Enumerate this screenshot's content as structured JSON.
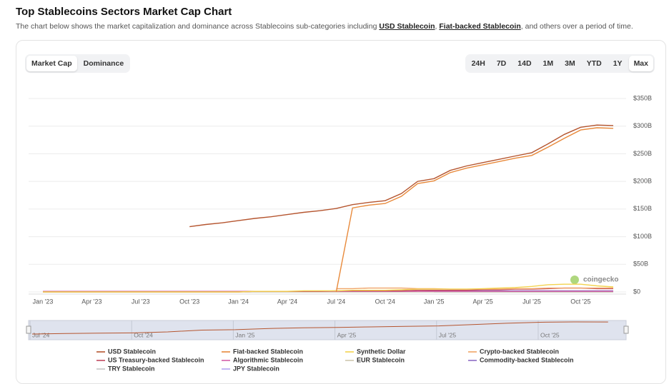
{
  "header": {
    "title": "Top Stablecoins Sectors Market Cap Chart",
    "subtitle": {
      "before": "The chart below shows the market capitalization and dominance across Stablecoins sub-categories including ",
      "link1": "USD Stablecoin",
      "between": ", ",
      "link2": "Fiat-backed Stablecoin",
      "after": ", and others over a period of time."
    }
  },
  "controls": {
    "views": [
      "Market Cap",
      "Dominance"
    ],
    "ranges": [
      "24H",
      "7D",
      "14D",
      "1M",
      "3M",
      "YTD",
      "1Y",
      "Max"
    ]
  },
  "chart_data": {
    "type": "line",
    "watermark": "coingecko",
    "categories": [
      "Jan '23",
      null,
      null,
      "Apr '23",
      null,
      null,
      "Jul '23",
      null,
      null,
      "Oct '23",
      null,
      null,
      "Jan '24",
      null,
      null,
      "Apr '24",
      null,
      null,
      "Jul '24",
      null,
      null,
      "Oct '24",
      null,
      null,
      "Jan '25",
      null,
      null,
      "Apr '25",
      null,
      null,
      "Jul '25",
      null,
      null,
      "Oct '25",
      null,
      null
    ],
    "ylim": [
      0,
      350
    ],
    "yticks": [
      {
        "value": 0,
        "label": "$0"
      },
      {
        "value": 50,
        "label": "$50B"
      },
      {
        "value": 100,
        "label": "$100B"
      },
      {
        "value": 150,
        "label": "$150B"
      },
      {
        "value": 200,
        "label": "$200B"
      },
      {
        "value": 250,
        "label": "$250B"
      },
      {
        "value": 300,
        "label": "$300B"
      },
      {
        "value": 350,
        "label": "$350B"
      }
    ],
    "grid": true,
    "series": [
      {
        "name": "USD Stablecoin",
        "color": "#b5552f",
        "values": [
          null,
          null,
          null,
          null,
          null,
          null,
          null,
          null,
          null,
          118,
          122,
          125,
          129,
          133,
          136,
          140,
          144,
          147,
          151,
          158,
          162,
          165,
          178,
          200,
          205,
          220,
          228,
          234,
          240,
          246,
          252,
          268,
          285,
          298,
          302,
          301
        ]
      },
      {
        "name": "Fiat-backed Stablecoin",
        "color": "#e8893a",
        "values": [
          null,
          null,
          null,
          null,
          null,
          null,
          null,
          null,
          null,
          null,
          null,
          null,
          null,
          null,
          null,
          null,
          null,
          null,
          0,
          152,
          157,
          160,
          173,
          196,
          201,
          216,
          224,
          230,
          236,
          242,
          247,
          262,
          278,
          293,
          297,
          296
        ]
      },
      {
        "name": "Synthetic Dollar",
        "color": "#f3d34f",
        "values": [
          0,
          0,
          0,
          0,
          0,
          0,
          0,
          0,
          0,
          0,
          0,
          0,
          0,
          1,
          1,
          1,
          2,
          2,
          2,
          3,
          3,
          3,
          4,
          5,
          5,
          5,
          5,
          6,
          7,
          8,
          10,
          13,
          14,
          14,
          11,
          9
        ]
      },
      {
        "name": "Crypto-backed Stablecoin",
        "color": "#f0a466",
        "values": [
          null,
          null,
          null,
          null,
          null,
          null,
          null,
          null,
          null,
          null,
          null,
          null,
          null,
          null,
          null,
          null,
          null,
          null,
          6,
          6,
          7,
          7,
          7,
          6,
          6,
          5,
          5,
          5,
          5,
          6,
          6,
          7,
          7,
          7,
          7,
          7
        ]
      },
      {
        "name": "US Treasury-backed Stablecoin",
        "color": "#c0485f",
        "values": [
          0,
          0,
          0,
          0,
          0,
          0,
          0,
          0,
          0,
          0,
          0,
          0,
          0,
          1,
          1,
          1,
          1,
          1,
          2,
          2,
          2,
          2,
          2,
          3,
          3,
          3,
          3,
          4,
          4,
          5,
          5,
          6,
          7,
          7,
          6,
          6
        ]
      },
      {
        "name": "Algorithmic Stablecoin",
        "color": "#d35fa8",
        "values": [
          1,
          1,
          1,
          1,
          1,
          1,
          1,
          1,
          1,
          1,
          1,
          1,
          1,
          1,
          1,
          1,
          1,
          1,
          1,
          1,
          1,
          1,
          1,
          1,
          1,
          1,
          1,
          1,
          1,
          1,
          1,
          1,
          1,
          1,
          1,
          1
        ]
      },
      {
        "name": "EUR Stablecoin",
        "color": "#cfc6ae",
        "values": [
          0,
          0,
          0,
          0,
          0,
          0,
          0,
          0,
          0,
          0,
          0,
          0,
          0,
          0,
          0,
          0,
          0,
          0,
          0,
          0,
          0,
          0,
          0,
          0,
          0,
          0,
          0,
          0,
          0,
          0,
          0,
          0,
          0,
          0,
          0,
          0
        ]
      },
      {
        "name": "Commodity-backed Stablecoin",
        "color": "#8e6cc4",
        "values": [
          1,
          1,
          1,
          1,
          1,
          1,
          1,
          1,
          1,
          1,
          1,
          1,
          1,
          1,
          1,
          1,
          1,
          1,
          1,
          1,
          1,
          1,
          1,
          1,
          2,
          2,
          2,
          2,
          2,
          2,
          2,
          2,
          2,
          2,
          2,
          2
        ]
      },
      {
        "name": "TRY Stablecoin",
        "color": "#c4c4c4",
        "values": [
          null,
          null,
          null,
          null,
          null,
          null,
          null,
          null,
          null,
          null,
          null,
          null,
          null,
          null,
          null,
          null,
          null,
          null,
          null,
          null,
          null,
          null,
          null,
          null,
          0,
          0,
          0,
          0,
          0,
          0,
          0,
          0,
          0,
          0,
          0,
          0
        ]
      },
      {
        "name": "JPY Stablecoin",
        "color": "#b3a4f2",
        "values": [
          null,
          null,
          null,
          null,
          null,
          null,
          null,
          null,
          null,
          null,
          null,
          null,
          null,
          null,
          null,
          null,
          null,
          null,
          null,
          null,
          null,
          null,
          null,
          null,
          0,
          0,
          0,
          0,
          0,
          0,
          0,
          0,
          0,
          0,
          0,
          0
        ]
      }
    ],
    "navigator": {
      "labels": [
        "Jul '24",
        "Oct '24",
        "Jan '25",
        "Apr '25",
        "Jul '25",
        "Oct '25"
      ]
    }
  }
}
